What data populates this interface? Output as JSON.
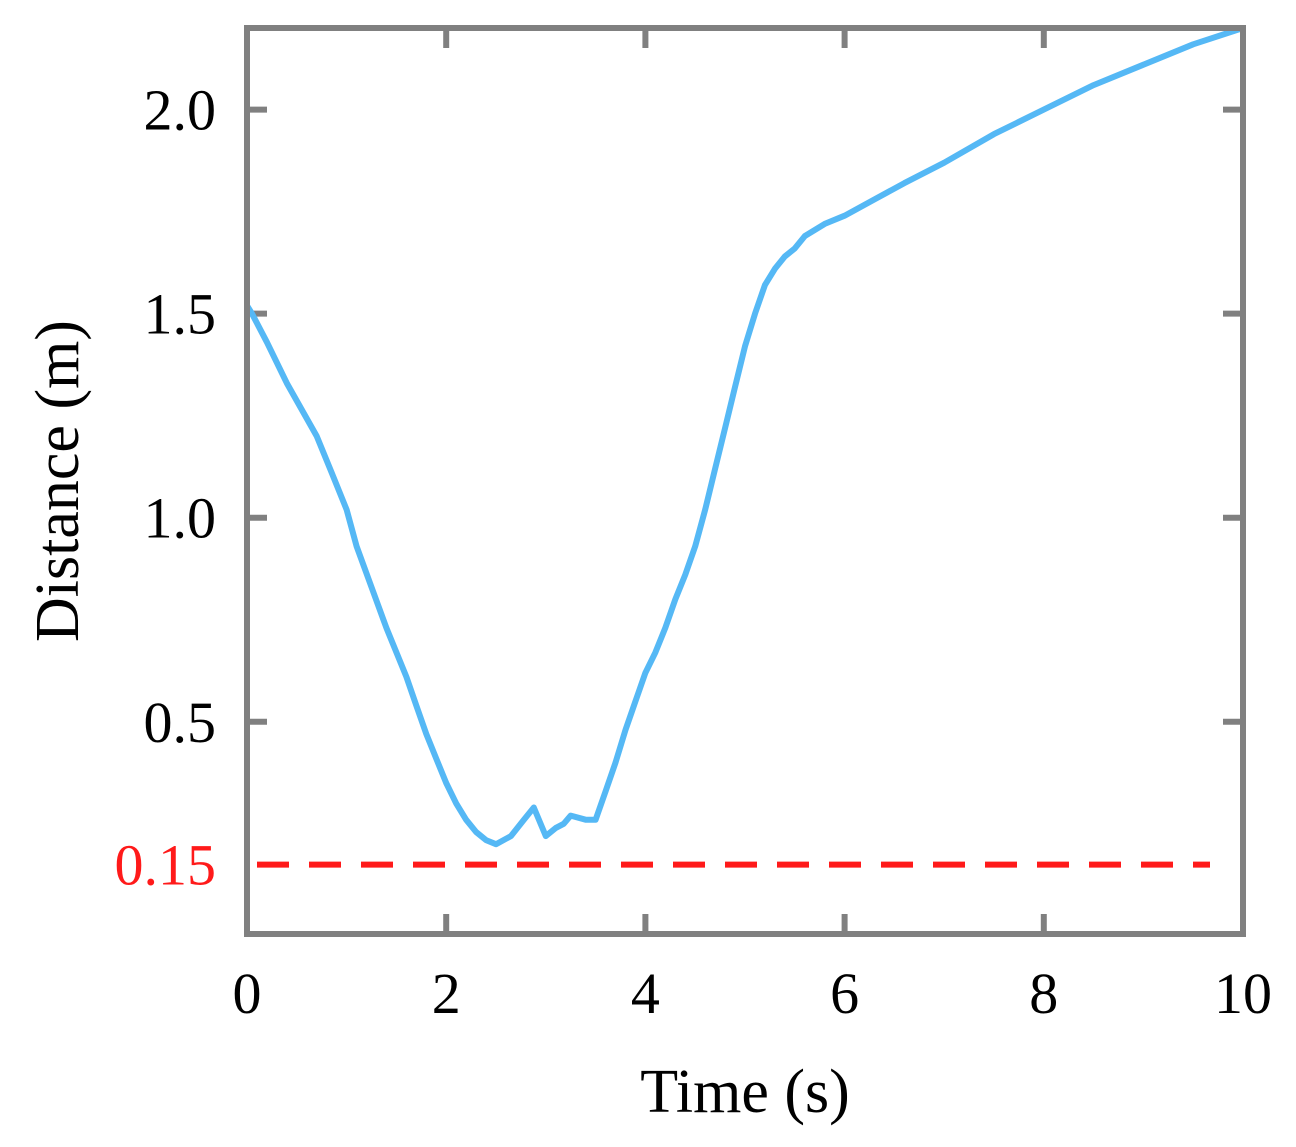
{
  "chart_data": {
    "type": "line",
    "xlabel": "Time (s)",
    "ylabel": "Distance (m)",
    "xlim": [
      0,
      10
    ],
    "ylim": [
      -0.02,
      2.2
    ],
    "grid": false,
    "x_ticks": [
      0,
      2,
      4,
      6,
      8,
      10
    ],
    "x_tick_labels": [
      "0",
      "2",
      "4",
      "6",
      "8",
      "10"
    ],
    "y_ticks": [
      0.5,
      1.0,
      1.5,
      2.0
    ],
    "y_tick_labels": [
      "0.5",
      "1.0",
      "1.5",
      "2.0"
    ],
    "series": [
      {
        "color": "#55b8f5",
        "x": [
          0,
          0.05,
          0.2,
          0.4,
          0.7,
          0.85,
          1.0,
          1.1,
          1.25,
          1.4,
          1.5,
          1.6,
          1.7,
          1.8,
          1.9,
          2.0,
          2.1,
          2.2,
          2.3,
          2.4,
          2.5,
          2.65,
          2.78,
          2.88,
          3.0,
          3.1,
          3.18,
          3.25,
          3.4,
          3.5,
          3.6,
          3.7,
          3.8,
          3.9,
          4.0,
          4.1,
          4.2,
          4.3,
          4.4,
          4.5,
          4.6,
          4.7,
          4.8,
          4.9,
          5.0,
          5.1,
          5.2,
          5.3,
          5.4,
          5.5,
          5.6,
          5.8,
          6.0,
          6.3,
          6.6,
          7.0,
          7.5,
          8.0,
          8.5,
          9.0,
          9.5,
          10.0
        ],
        "values": [
          1.52,
          1.5,
          1.43,
          1.33,
          1.2,
          1.11,
          1.02,
          0.93,
          0.83,
          0.73,
          0.67,
          0.61,
          0.54,
          0.47,
          0.41,
          0.35,
          0.3,
          0.26,
          0.23,
          0.21,
          0.2,
          0.22,
          0.26,
          0.29,
          0.22,
          0.24,
          0.25,
          0.27,
          0.26,
          0.26,
          0.33,
          0.4,
          0.48,
          0.55,
          0.62,
          0.67,
          0.73,
          0.8,
          0.86,
          0.93,
          1.02,
          1.12,
          1.22,
          1.32,
          1.42,
          1.5,
          1.57,
          1.61,
          1.64,
          1.66,
          1.69,
          1.72,
          1.74,
          1.78,
          1.82,
          1.87,
          1.94,
          2.0,
          2.06,
          2.11,
          2.16,
          2.2
        ]
      }
    ],
    "reference_line": {
      "y": 0.15,
      "label": "0.15",
      "color": "#ff1a1a",
      "style": "dashed"
    }
  }
}
